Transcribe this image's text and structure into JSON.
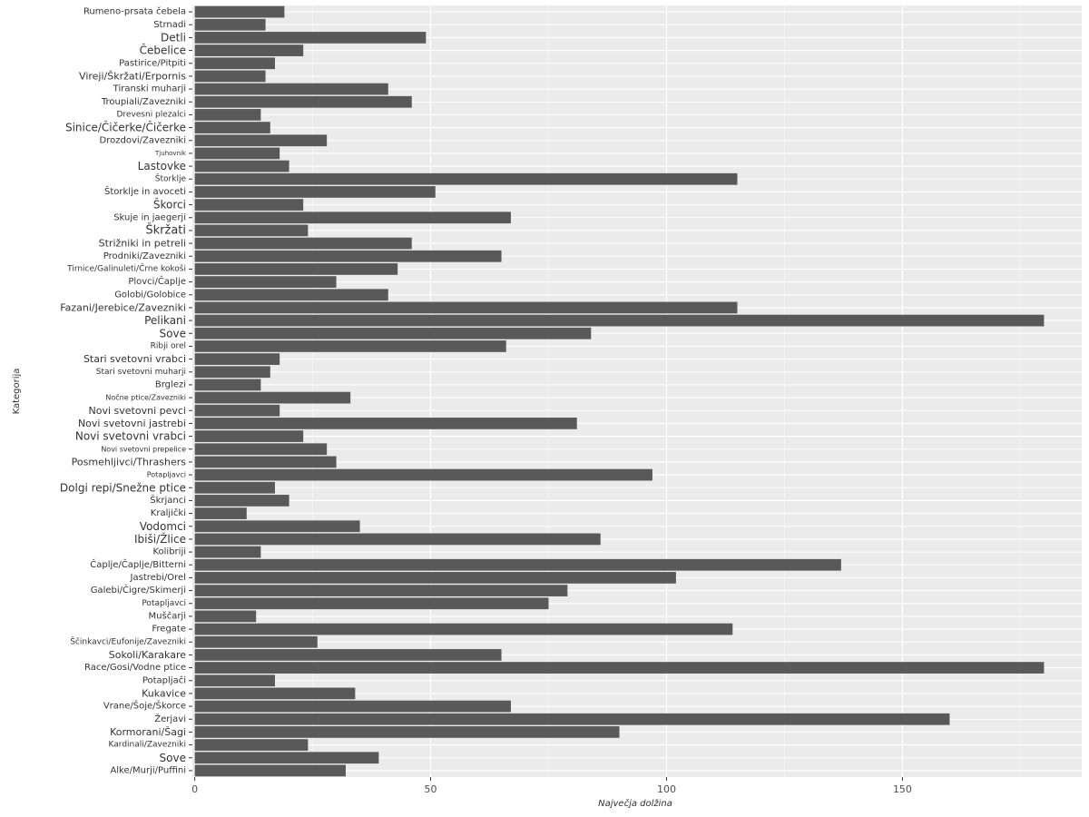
{
  "chart_data": {
    "type": "bar",
    "orientation": "horizontal",
    "xlabel": "Največja dolžina",
    "ylabel": "Kategorija",
    "xlim": [
      -0.5,
      188
    ],
    "x_ticks": [
      0,
      50,
      100,
      150
    ],
    "grid": true,
    "legend": "none",
    "bar_color": "#595959",
    "panel_color": "#ebebeb",
    "grid_color": "#ffffff",
    "categories": [
      "Rumeno-prsata čebela",
      "Strnadi",
      "Detli",
      "Čebelice",
      "Pastirice/Pitpiti",
      "Vireji/Škržati/Erpornis",
      "Tiranski muharji",
      "Troupiali/Zavezniki",
      "Drevesni plezalci",
      "Sinice/Čičerke/Čičerke",
      "Drozdovi/Zavezniki",
      "Tjuhovnik",
      "Lastovke",
      "Štorklje",
      "Štorklje in avoceti",
      "Škorci",
      "Skuje in jaegerji",
      "Škržati",
      "Strižniki in petreli",
      "Prodniki/Zavezniki",
      "Tirnice/Galinuleti/Črne kokoši",
      "Plovci/Čaplje",
      "Golobi/Golobice",
      "Fazani/Jerebice/Zavezniki",
      "Pelikani",
      "Sove",
      "Ribji orel",
      "Stari svetovni vrabci",
      "Stari svetovni muharji",
      "Brglezi",
      "Nočne ptice/Zavezniki",
      "Novi svetovni pevci",
      "Novi svetovni jastrebi",
      "Novi svetovni vrabci",
      "Novi svetovni prepelice",
      "Posmehljivci/Thrashers",
      "Potapljavci",
      "Dolgi repi/Snežne ptice",
      "Škrjanci",
      "Kraljički",
      "Vodomci",
      "Ibiši/Žlice",
      "Kolibriji",
      "Čaplje/Čaplje/Bitterni",
      "Jastrebi/Orel",
      "Galebi/Čigre/Skimerji",
      "Potapljavci",
      "Muščarji",
      "Fregate",
      "Ščinkavci/Eufonije/Zavezniki",
      "Sokoli/Karakare",
      "Race/Gosi/Vodne ptice",
      "Potapljači",
      "Kukavice",
      "Vrane/Šoje/Škorce",
      "Žerjavi",
      "Kormorani/Šagi",
      "Kardinali/Zavezniki",
      "Sove",
      "Alke/Murji/Puffini"
    ],
    "values": [
      19,
      15,
      49,
      23,
      17,
      15,
      41,
      46,
      14,
      16,
      28,
      18,
      20,
      115,
      51,
      23,
      67,
      24,
      46,
      65,
      43,
      30,
      41,
      115,
      180,
      84,
      66,
      18,
      16,
      14,
      33,
      18,
      81,
      23,
      28,
      30,
      97,
      17,
      20,
      11,
      35,
      86,
      14,
      137,
      102,
      79,
      75,
      13,
      114,
      26,
      65,
      180,
      17,
      34,
      67,
      160,
      90,
      24,
      39,
      32
    ],
    "label_sizes": [
      10,
      10,
      12,
      12,
      10,
      11,
      10,
      10,
      9,
      12,
      10,
      7,
      12,
      9,
      10,
      12,
      10,
      13,
      11,
      10,
      9,
      10,
      10,
      11,
      12,
      12,
      9,
      11,
      9,
      10,
      8,
      11,
      11,
      12,
      8,
      11,
      8,
      12,
      10,
      10,
      12,
      12,
      10,
      10,
      10,
      10,
      9,
      10,
      10,
      9,
      11,
      10,
      10,
      11,
      10,
      10,
      11,
      9,
      12,
      10
    ]
  }
}
